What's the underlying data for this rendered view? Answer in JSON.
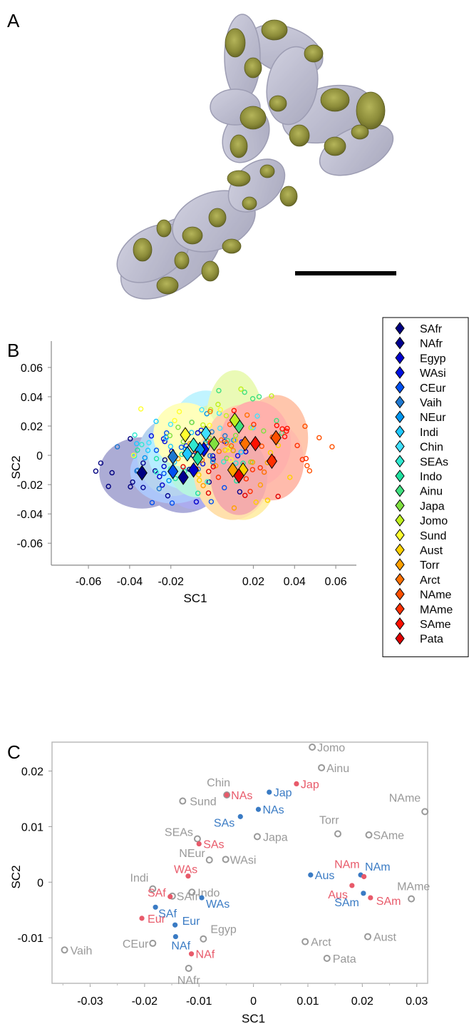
{
  "figure": {
    "panel_labels": [
      "A",
      "B",
      "C"
    ],
    "panel_a": {
      "description_icon": "3d-volume-render",
      "scale_bar": true
    }
  },
  "chart_data": [
    {
      "type": "scatter",
      "panel": "B",
      "xlabel": "SC1",
      "ylabel": "SC2",
      "xticks": [
        -0.06,
        -0.04,
        -0.02,
        0.02,
        0.04,
        0.06
      ],
      "yticks": [
        0.06,
        0.04,
        0.02,
        0,
        -0.02,
        -0.04,
        -0.06
      ],
      "xlim": [
        -0.078,
        0.07
      ],
      "ylim": [
        -0.075,
        0.078
      ],
      "legend_position": "right",
      "series": [
        {
          "name": "SAfr",
          "color": "#000080",
          "centroid": [
            -0.034,
            -0.012
          ]
        },
        {
          "name": "NAfr",
          "color": "#00008f",
          "centroid": [
            -0.014,
            -0.015
          ]
        },
        {
          "name": "Egyp",
          "color": "#0000cc",
          "centroid": [
            -0.009,
            -0.01
          ]
        },
        {
          "name": "WAsi",
          "color": "#0010e0",
          "centroid": [
            -0.004,
            0.004
          ]
        },
        {
          "name": "CEur",
          "color": "#0050f0",
          "centroid": [
            -0.019,
            -0.011
          ]
        },
        {
          "name": "Vaih",
          "color": "#1f78d0",
          "centroid": [
            -0.019,
            -0.001
          ]
        },
        {
          "name": "NEur",
          "color": "#0096f0",
          "centroid": [
            -0.006,
            0.004
          ]
        },
        {
          "name": "Indi",
          "color": "#1fc8ff",
          "centroid": [
            -0.012,
            0.001
          ]
        },
        {
          "name": "Chin",
          "color": "#40e0ff",
          "centroid": [
            -0.003,
            0.015
          ]
        },
        {
          "name": "SEAs",
          "color": "#30e8d0",
          "centroid": [
            -0.009,
            0.007
          ]
        },
        {
          "name": "Indo",
          "color": "#20e0a0",
          "centroid": [
            -0.007,
            -0.002
          ]
        },
        {
          "name": "Ainu",
          "color": "#40e080",
          "centroid": [
            0.013,
            0.02
          ]
        },
        {
          "name": "Japa",
          "color": "#80e040",
          "centroid": [
            0.001,
            0.008
          ]
        },
        {
          "name": "Jomo",
          "color": "#c0f020",
          "centroid": [
            0.011,
            0.024
          ]
        },
        {
          "name": "Sund",
          "color": "#ffff30",
          "centroid": [
            -0.013,
            0.014
          ]
        },
        {
          "name": "Aust",
          "color": "#ffd000",
          "centroid": [
            0.015,
            -0.01
          ]
        },
        {
          "name": "Torr",
          "color": "#ffa000",
          "centroid": [
            0.01,
            -0.01
          ]
        },
        {
          "name": "Arct",
          "color": "#ff7000",
          "centroid": [
            0.016,
            0.008
          ]
        },
        {
          "name": "NAme",
          "color": "#ff5000",
          "centroid": [
            0.031,
            0.012
          ]
        },
        {
          "name": "MAme",
          "color": "#ff3000",
          "centroid": [
            0.029,
            -0.004
          ]
        },
        {
          "name": "SAme",
          "color": "#ff1000",
          "centroid": [
            0.021,
            0.008
          ]
        },
        {
          "name": "Pata",
          "color": "#e00000",
          "centroid": [
            0.013,
            -0.014
          ]
        }
      ]
    },
    {
      "type": "scatter",
      "panel": "C",
      "xlabel": "SC1",
      "ylabel": "SC2",
      "xticks": [
        -0.03,
        -0.02,
        -0.01,
        0,
        0.01,
        0.02,
        0.03
      ],
      "yticks": [
        0.02,
        0.01,
        0,
        -0.01
      ],
      "xticklabels": [
        "-0.03",
        "-0.02",
        "-0.01",
        "0",
        "0.01",
        "0.02",
        "0.03"
      ],
      "yticklabels": [
        "0.02",
        "0.01",
        "0",
        "-0.01"
      ],
      "xlim": [
        -0.037,
        0.032
      ],
      "ylim": [
        -0.0182,
        0.0252
      ],
      "grid": false,
      "series": [
        {
          "name": "population",
          "color": "#999999",
          "marker": "open-circle",
          "points": [
            {
              "label": "Jomo",
              "x": 0.0108,
              "y": 0.0243
            },
            {
              "label": "Ainu",
              "x": 0.0125,
              "y": 0.0206
            },
            {
              "label": "Chin",
              "x": -0.0049,
              "y": 0.0157
            },
            {
              "label": "Sund",
              "x": -0.013,
              "y": 0.0146
            },
            {
              "label": "NAme",
              "x": 0.0315,
              "y": 0.0127
            },
            {
              "label": "Torr",
              "x": 0.0155,
              "y": 0.0087
            },
            {
              "label": "SAme",
              "x": 0.0212,
              "y": 0.0085
            },
            {
              "label": "Japa",
              "x": 0.0007,
              "y": 0.0082
            },
            {
              "label": "SEAs",
              "x": -0.0103,
              "y": 0.0078
            },
            {
              "label": "NEur",
              "x": -0.0081,
              "y": 0.004
            },
            {
              "label": "WAsi",
              "x": -0.0051,
              "y": 0.0041
            },
            {
              "label": "Indi",
              "x": -0.0185,
              "y": -0.0012
            },
            {
              "label": "SAfr",
              "x": -0.0149,
              "y": -0.0025
            },
            {
              "label": "Indo",
              "x": -0.0113,
              "y": -0.0018
            },
            {
              "label": "MAme",
              "x": 0.029,
              "y": -0.003
            },
            {
              "label": "Egyp",
              "x": -0.0092,
              "y": -0.0102
            },
            {
              "label": "CEur",
              "x": -0.0185,
              "y": -0.011
            },
            {
              "label": "Arct",
              "x": 0.0095,
              "y": -0.0107
            },
            {
              "label": "Aust",
              "x": 0.021,
              "y": -0.0098
            },
            {
              "label": "Vaih",
              "x": -0.0347,
              "y": -0.0122
            },
            {
              "label": "Pata",
              "x": 0.0135,
              "y": -0.0137
            },
            {
              "label": "NAfr",
              "x": -0.0119,
              "y": -0.0155
            }
          ]
        },
        {
          "name": "group-blue",
          "color": "#3a7bc4",
          "marker": "filled-dot",
          "points": [
            {
              "label": "Jap",
              "x": 0.0029,
              "y": 0.0162
            },
            {
              "label": "NAs",
              "x": 0.0009,
              "y": 0.0131
            },
            {
              "label": "SAs",
              "x": -0.0024,
              "y": 0.0118
            },
            {
              "label": "WAs",
              "x": -0.0095,
              "y": -0.0028
            },
            {
              "label": "SAf",
              "x": -0.018,
              "y": -0.0045
            },
            {
              "label": "Eur",
              "x": -0.0144,
              "y": -0.0077
            },
            {
              "label": "NAf",
              "x": -0.0143,
              "y": -0.0098
            },
            {
              "label": "Aus",
              "x": 0.0105,
              "y": 0.0013
            },
            {
              "label": "NAm",
              "x": 0.0197,
              "y": 0.0013
            },
            {
              "label": "SAm",
              "x": 0.0202,
              "y": -0.002
            }
          ]
        },
        {
          "name": "group-red",
          "color": "#e85a6a",
          "marker": "filled-dot",
          "points": [
            {
              "label": "Jap",
              "x": 0.0079,
              "y": 0.0177
            },
            {
              "label": "NAs",
              "x": -0.0049,
              "y": 0.0157
            },
            {
              "label": "SAs",
              "x": -0.01,
              "y": 0.0069
            },
            {
              "label": "WAs",
              "x": -0.012,
              "y": 0.0011
            },
            {
              "label": "SAf",
              "x": -0.0153,
              "y": -0.0026
            },
            {
              "label": "Eur",
              "x": -0.0205,
              "y": -0.0065
            },
            {
              "label": "NAf",
              "x": -0.0114,
              "y": -0.0129
            },
            {
              "label": "Aus",
              "x": 0.0181,
              "y": -0.0006
            },
            {
              "label": "NAm",
              "x": 0.0203,
              "y": 0.001
            },
            {
              "label": "SAm",
              "x": 0.0215,
              "y": -0.0028
            }
          ]
        }
      ]
    }
  ]
}
